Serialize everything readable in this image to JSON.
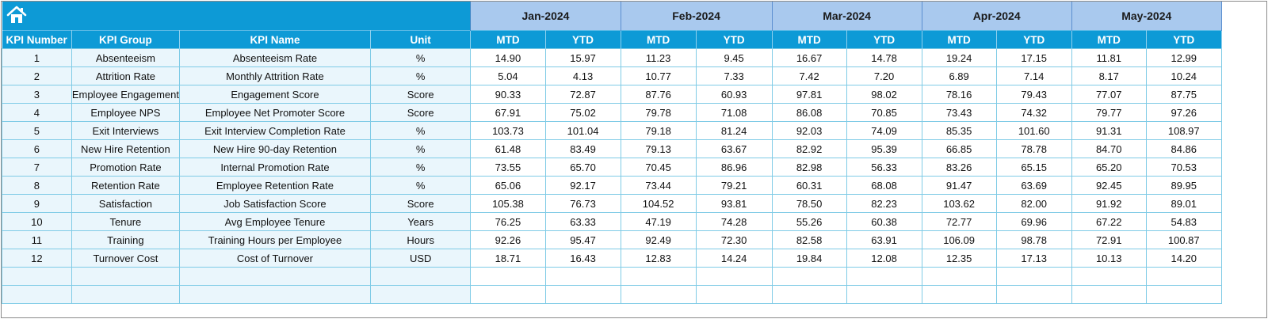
{
  "home_icon": "home-icon",
  "colors": {
    "header_blue": "#0d9ad6",
    "month_blue": "#a9c9ee",
    "key_col_bg": "#eaf6fc",
    "grid": "#7fcbe6"
  },
  "months": [
    "Jan-2024",
    "Feb-2024",
    "Mar-2024",
    "Apr-2024",
    "May-2024"
  ],
  "columns": {
    "kpi_number": "KPI Number",
    "kpi_group": "KPI Group",
    "kpi_name": "KPI Name",
    "unit": "Unit",
    "mtd": "MTD",
    "ytd": "YTD"
  },
  "rows": [
    {
      "num": "1",
      "group": "Absenteeism",
      "name": "Absenteeism Rate",
      "unit": "%",
      "values": [
        "14.90",
        "15.97",
        "11.23",
        "9.45",
        "16.67",
        "14.78",
        "19.24",
        "17.15",
        "11.81",
        "12.99"
      ]
    },
    {
      "num": "2",
      "group": "Attrition Rate",
      "name": "Monthly Attrition Rate",
      "unit": "%",
      "values": [
        "5.04",
        "4.13",
        "10.77",
        "7.33",
        "7.42",
        "7.20",
        "6.89",
        "7.14",
        "8.17",
        "10.24"
      ]
    },
    {
      "num": "3",
      "group": "Employee Engagement",
      "name": "Engagement Score",
      "unit": "Score",
      "values": [
        "90.33",
        "72.87",
        "87.76",
        "60.93",
        "97.81",
        "98.02",
        "78.16",
        "79.43",
        "77.07",
        "87.75"
      ]
    },
    {
      "num": "4",
      "group": "Employee NPS",
      "name": "Employee Net Promoter Score",
      "unit": "Score",
      "values": [
        "67.91",
        "75.02",
        "79.78",
        "71.08",
        "86.08",
        "70.85",
        "73.43",
        "74.32",
        "79.77",
        "97.26"
      ]
    },
    {
      "num": "5",
      "group": "Exit Interviews",
      "name": "Exit Interview Completion Rate",
      "unit": "%",
      "values": [
        "103.73",
        "101.04",
        "79.18",
        "81.24",
        "92.03",
        "74.09",
        "85.35",
        "101.60",
        "91.31",
        "108.97"
      ]
    },
    {
      "num": "6",
      "group": "New Hire Retention",
      "name": "New Hire 90-day Retention",
      "unit": "%",
      "values": [
        "61.48",
        "83.49",
        "79.13",
        "63.67",
        "82.92",
        "95.39",
        "66.85",
        "78.78",
        "84.70",
        "84.86"
      ]
    },
    {
      "num": "7",
      "group": "Promotion Rate",
      "name": "Internal Promotion Rate",
      "unit": "%",
      "values": [
        "73.55",
        "65.70",
        "70.45",
        "86.96",
        "82.98",
        "56.33",
        "83.26",
        "65.15",
        "65.20",
        "70.53"
      ]
    },
    {
      "num": "8",
      "group": "Retention Rate",
      "name": "Employee Retention Rate",
      "unit": "%",
      "values": [
        "65.06",
        "92.17",
        "73.44",
        "79.21",
        "60.31",
        "68.08",
        "91.47",
        "63.69",
        "92.45",
        "89.95"
      ]
    },
    {
      "num": "9",
      "group": "Satisfaction",
      "name": "Job Satisfaction Score",
      "unit": "Score",
      "values": [
        "105.38",
        "76.73",
        "104.52",
        "93.81",
        "78.50",
        "82.23",
        "103.62",
        "82.00",
        "91.92",
        "89.01"
      ]
    },
    {
      "num": "10",
      "group": "Tenure",
      "name": "Avg Employee Tenure",
      "unit": "Years",
      "values": [
        "76.25",
        "63.33",
        "47.19",
        "74.28",
        "55.26",
        "60.38",
        "72.77",
        "69.96",
        "67.22",
        "54.83"
      ]
    },
    {
      "num": "11",
      "group": "Training",
      "name": "Training Hours per Employee",
      "unit": "Hours",
      "values": [
        "92.26",
        "95.47",
        "92.49",
        "72.30",
        "82.58",
        "63.91",
        "106.09",
        "98.78",
        "72.91",
        "100.87"
      ]
    },
    {
      "num": "12",
      "group": "Turnover Cost",
      "name": "Cost of Turnover",
      "unit": "USD",
      "values": [
        "18.71",
        "16.43",
        "12.83",
        "14.24",
        "19.84",
        "12.08",
        "12.35",
        "17.13",
        "10.13",
        "14.20"
      ]
    }
  ],
  "empty_rows": 2
}
